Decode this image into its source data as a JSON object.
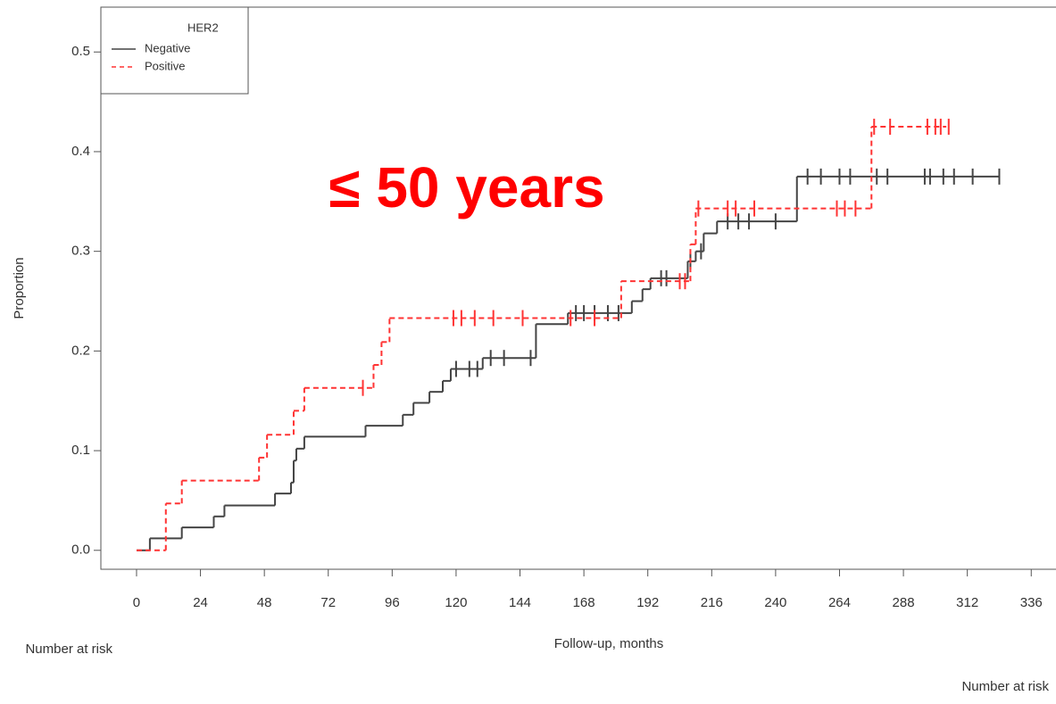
{
  "chart_data": {
    "type": "step",
    "annotation": "≤ 50 years",
    "y_label": "Proportion",
    "x_label": "Follow-up, months",
    "notes": [
      "Number at risk",
      "Number at risk"
    ],
    "legend_title": "HER2",
    "legend": "upper left",
    "xlim": [
      -13.4,
      345.3
    ],
    "ylim": [
      -0.019,
      0.545
    ],
    "xticks": [
      0,
      24,
      48,
      72,
      96,
      120,
      144,
      168,
      192,
      216,
      240,
      264,
      288,
      312,
      336
    ],
    "yticks": [
      {
        "value": 0,
        "label": "0.0"
      },
      0.1,
      0.2,
      0.3,
      0.4,
      0.5
    ],
    "series": [
      {
        "name": "Negative",
        "color": "#444444",
        "dash": false,
        "x": [
          0,
          5,
          17,
          29,
          33,
          52,
          58,
          59,
          60,
          63,
          86,
          100,
          104,
          110,
          115,
          118,
          130,
          150,
          162,
          186,
          190,
          193,
          207,
          210,
          213,
          218,
          248,
          324
        ],
        "values": [
          0,
          0.012,
          0.023,
          0.034,
          0.045,
          0.057,
          0.068,
          0.09,
          0.102,
          0.114,
          0.125,
          0.136,
          0.148,
          0.159,
          0.17,
          0.182,
          0.193,
          0.227,
          0.238,
          0.25,
          0.262,
          0.273,
          0.29,
          0.3,
          0.318,
          0.33,
          0.375,
          0.375
        ],
        "censor": [
          120,
          125,
          128,
          133,
          138,
          148,
          165,
          168,
          172,
          177,
          181,
          197,
          199,
          208,
          212,
          222,
          226,
          230,
          240,
          252,
          257,
          264,
          268,
          278,
          282,
          296,
          298,
          303,
          307,
          314,
          324
        ]
      },
      {
        "name": "Positive",
        "color": "#ff3333",
        "dash": true,
        "x": [
          0,
          11,
          17,
          46,
          49,
          59,
          63,
          89,
          92,
          95,
          182,
          208,
          210,
          276,
          304
        ],
        "values": [
          0,
          0.047,
          0.07,
          0.093,
          0.116,
          0.14,
          0.163,
          0.186,
          0.209,
          0.233,
          0.27,
          0.307,
          0.343,
          0.425,
          0.425
        ],
        "censor": [
          85,
          119,
          122,
          127,
          134,
          145,
          163,
          172,
          204,
          206,
          211,
          222,
          225,
          232,
          263,
          266,
          270,
          277,
          283,
          297,
          300,
          302,
          305
        ]
      }
    ]
  }
}
